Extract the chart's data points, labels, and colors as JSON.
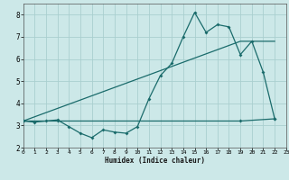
{
  "xlabel": "Humidex (Indice chaleur)",
  "bg_color": "#cce8e8",
  "grid_color": "#aacfcf",
  "line_color": "#1a6b6b",
  "line1_x": [
    0,
    1,
    2,
    3,
    4,
    5,
    6,
    7,
    8,
    9,
    10,
    11,
    12,
    13,
    14,
    15,
    16,
    17,
    18,
    19,
    20,
    21,
    22
  ],
  "line1_y": [
    3.2,
    3.15,
    3.2,
    3.25,
    2.95,
    2.65,
    2.45,
    2.8,
    2.7,
    2.65,
    2.95,
    4.2,
    5.25,
    5.8,
    7.0,
    8.1,
    7.2,
    7.55,
    7.45,
    6.2,
    6.8,
    5.4,
    3.3
  ],
  "line2_x": [
    0,
    3,
    19,
    22
  ],
  "line2_y": [
    3.2,
    3.2,
    3.2,
    3.3
  ],
  "line3_x": [
    0,
    19,
    22
  ],
  "line3_y": [
    3.2,
    6.8,
    6.8
  ],
  "ylim": [
    2.0,
    8.5
  ],
  "xlim": [
    0,
    23
  ],
  "yticks": [
    2,
    3,
    4,
    5,
    6,
    7,
    8
  ],
  "xticks": [
    0,
    1,
    2,
    3,
    4,
    5,
    6,
    7,
    8,
    9,
    10,
    11,
    12,
    13,
    14,
    15,
    16,
    17,
    18,
    19,
    20,
    21,
    22,
    23
  ]
}
